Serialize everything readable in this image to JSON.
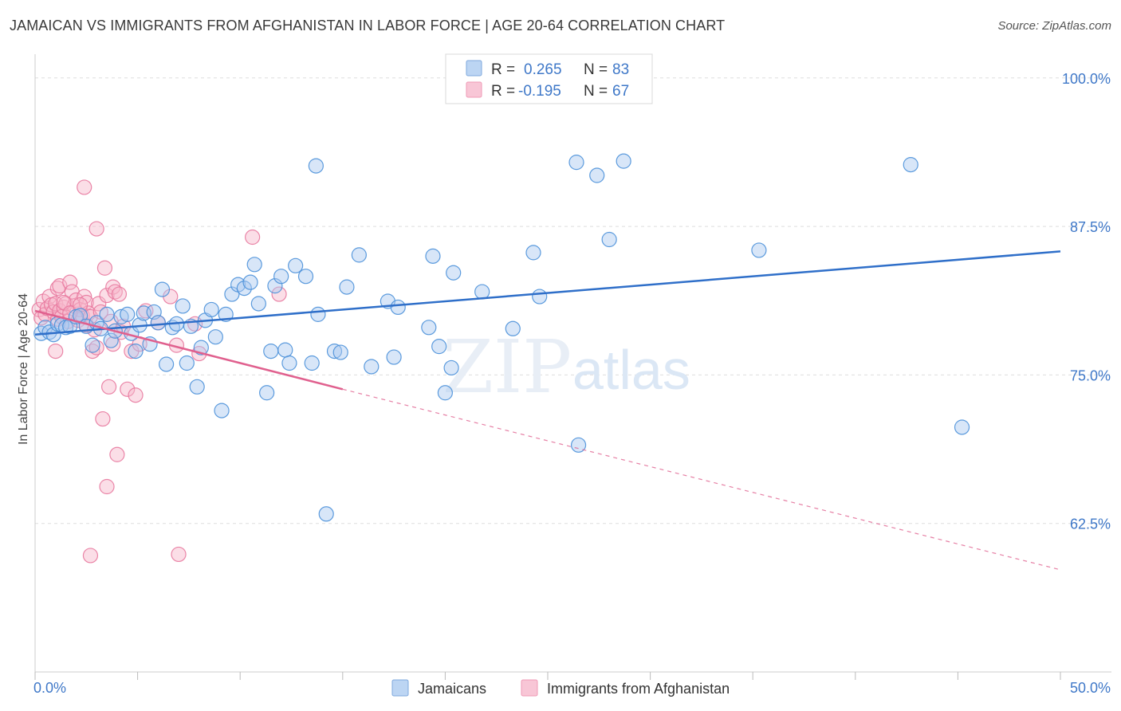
{
  "header": {
    "title": "JAMAICAN VS IMMIGRANTS FROM AFGHANISTAN IN LABOR FORCE | AGE 20-64 CORRELATION CHART",
    "source": "Source: ZipAtlas.com"
  },
  "watermark": {
    "zip": "ZIP",
    "atlas": "atlas"
  },
  "colors": {
    "blue": "#4a90d9",
    "blue_fill": "#a9c8f0",
    "blue_line": "#2f6fc9",
    "pink": "#e8799f",
    "pink_fill": "#f7b6c9",
    "pink_line": "#e0608e",
    "value_text": "#3f78c8",
    "grid": "#dddddd"
  },
  "legend_box": {
    "rows": [
      {
        "r_label": "R =",
        "r_value": "0.265",
        "n_label": "N =",
        "n_value": "83",
        "series": "blue"
      },
      {
        "r_label": "R =",
        "r_value": "-0.195",
        "n_label": "N =",
        "n_value": "67",
        "series": "pink"
      }
    ]
  },
  "chart_data": {
    "type": "scatter",
    "title": "JAMAICAN VS IMMIGRANTS FROM AFGHANISTAN IN LABOR FORCE | AGE 20-64 CORRELATION CHART",
    "xlabel": "",
    "ylabel": "In Labor Force | Age 20-64",
    "xlim": [
      0,
      50
    ],
    "ylim": [
      50,
      102
    ],
    "x_tick_labels": [
      {
        "value": 0,
        "label": "0.0%"
      },
      {
        "value": 50,
        "label": "50.0%"
      }
    ],
    "y_ticks": [
      {
        "value": 100,
        "label": "100.0%"
      },
      {
        "value": 87.5,
        "label": "87.5%"
      },
      {
        "value": 75,
        "label": "75.0%"
      },
      {
        "value": 62.5,
        "label": "62.5%"
      }
    ],
    "legend": [
      "Jamaicans",
      "Immigrants from Afghanistan"
    ],
    "series": [
      {
        "name": "Jamaicans",
        "color": "blue",
        "R": 0.265,
        "N": 83,
        "trend": {
          "x0": 0,
          "y0": 78.4,
          "x1": 50,
          "y1": 85.4
        },
        "points": [
          [
            0.3,
            78.5
          ],
          [
            0.5,
            79.0
          ],
          [
            0.7,
            78.6
          ],
          [
            0.9,
            78.4
          ],
          [
            1.1,
            79.3
          ],
          [
            1.3,
            79.2
          ],
          [
            1.5,
            79.0
          ],
          [
            1.7,
            79.1
          ],
          [
            2.0,
            79.9
          ],
          [
            2.2,
            80.0
          ],
          [
            2.5,
            79.1
          ],
          [
            2.8,
            77.5
          ],
          [
            3.0,
            79.4
          ],
          [
            3.2,
            78.9
          ],
          [
            3.5,
            80.1
          ],
          [
            3.7,
            77.9
          ],
          [
            3.9,
            78.7
          ],
          [
            4.2,
            79.9
          ],
          [
            4.5,
            80.1
          ],
          [
            4.7,
            78.5
          ],
          [
            4.9,
            77.0
          ],
          [
            5.1,
            79.2
          ],
          [
            5.3,
            80.2
          ],
          [
            5.6,
            77.6
          ],
          [
            5.8,
            80.3
          ],
          [
            6.0,
            79.4
          ],
          [
            6.2,
            82.2
          ],
          [
            6.4,
            75.9
          ],
          [
            6.7,
            79.0
          ],
          [
            6.9,
            79.3
          ],
          [
            7.2,
            80.8
          ],
          [
            7.4,
            76.0
          ],
          [
            7.6,
            79.1
          ],
          [
            7.9,
            74.0
          ],
          [
            8.1,
            77.3
          ],
          [
            8.3,
            79.6
          ],
          [
            8.6,
            80.5
          ],
          [
            8.8,
            78.2
          ],
          [
            9.1,
            72.0
          ],
          [
            9.3,
            80.1
          ],
          [
            9.6,
            81.8
          ],
          [
            9.9,
            82.6
          ],
          [
            10.2,
            82.3
          ],
          [
            10.5,
            82.8
          ],
          [
            10.7,
            84.3
          ],
          [
            10.9,
            81.0
          ],
          [
            11.3,
            73.5
          ],
          [
            11.5,
            77.0
          ],
          [
            11.7,
            82.5
          ],
          [
            12.0,
            83.3
          ],
          [
            12.2,
            77.1
          ],
          [
            12.4,
            76.0
          ],
          [
            12.7,
            84.2
          ],
          [
            13.2,
            83.3
          ],
          [
            13.5,
            76.0
          ],
          [
            13.8,
            80.1
          ],
          [
            13.7,
            92.6
          ],
          [
            14.6,
            77.0
          ],
          [
            14.9,
            76.9
          ],
          [
            15.2,
            82.4
          ],
          [
            15.8,
            85.1
          ],
          [
            16.4,
            75.7
          ],
          [
            17.2,
            81.2
          ],
          [
            17.5,
            76.5
          ],
          [
            17.7,
            80.7
          ],
          [
            19.2,
            79.0
          ],
          [
            19.4,
            85.0
          ],
          [
            19.7,
            77.4
          ],
          [
            20.0,
            73.5
          ],
          [
            20.4,
            83.6
          ],
          [
            20.3,
            75.6
          ],
          [
            21.8,
            82.0
          ],
          [
            23.3,
            78.9
          ],
          [
            24.3,
            85.3
          ],
          [
            24.6,
            81.6
          ],
          [
            26.4,
            92.9
          ],
          [
            26.5,
            69.1
          ],
          [
            27.4,
            91.8
          ],
          [
            28.0,
            86.4
          ],
          [
            28.7,
            93.0
          ],
          [
            35.3,
            85.5
          ],
          [
            42.7,
            92.7
          ],
          [
            45.2,
            70.6
          ],
          [
            14.2,
            63.3
          ]
        ]
      },
      {
        "name": "Immigrants from Afghanistan",
        "color": "pink",
        "R": -0.195,
        "N": 67,
        "trend": {
          "x0": 0,
          "y0": 80.4,
          "x1": 15.0,
          "y1": 73.8,
          "x_dash_end": 50,
          "y_dash_end": 58.6
        },
        "points": [
          [
            0.2,
            80.5
          ],
          [
            0.3,
            79.8
          ],
          [
            0.4,
            81.2
          ],
          [
            0.5,
            80.1
          ],
          [
            0.6,
            80.6
          ],
          [
            0.7,
            81.6
          ],
          [
            0.8,
            80.9
          ],
          [
            0.9,
            80.3
          ],
          [
            1.0,
            81.0
          ],
          [
            1.1,
            79.7
          ],
          [
            1.2,
            80.4
          ],
          [
            1.3,
            79.9
          ],
          [
            1.0,
            77.0
          ],
          [
            1.1,
            82.3
          ],
          [
            1.2,
            82.5
          ],
          [
            1.4,
            80.7
          ],
          [
            1.5,
            81.0
          ],
          [
            1.6,
            79.5
          ],
          [
            1.7,
            82.8
          ],
          [
            1.8,
            82.0
          ],
          [
            1.9,
            80.8
          ],
          [
            2.0,
            81.3
          ],
          [
            2.1,
            79.6
          ],
          [
            2.2,
            80.5
          ],
          [
            2.3,
            80.0
          ],
          [
            2.4,
            81.6
          ],
          [
            2.5,
            79.2
          ],
          [
            2.4,
            90.8
          ],
          [
            2.5,
            81.1
          ],
          [
            2.6,
            80.2
          ],
          [
            2.7,
            79.9
          ],
          [
            2.8,
            77.0
          ],
          [
            2.9,
            78.8
          ],
          [
            3.0,
            77.3
          ],
          [
            3.1,
            81.0
          ],
          [
            3.2,
            80.3
          ],
          [
            3.0,
            87.3
          ],
          [
            3.3,
            71.3
          ],
          [
            3.4,
            84.0
          ],
          [
            3.5,
            81.7
          ],
          [
            3.6,
            74.0
          ],
          [
            3.7,
            79.5
          ],
          [
            3.8,
            82.4
          ],
          [
            3.9,
            82.0
          ],
          [
            4.0,
            68.3
          ],
          [
            4.1,
            81.8
          ],
          [
            4.2,
            78.6
          ],
          [
            4.3,
            79.1
          ],
          [
            3.5,
            65.6
          ],
          [
            2.7,
            59.8
          ],
          [
            4.5,
            73.8
          ],
          [
            4.7,
            77.0
          ],
          [
            4.9,
            73.3
          ],
          [
            5.1,
            77.6
          ],
          [
            5.4,
            80.4
          ],
          [
            6.0,
            79.4
          ],
          [
            6.6,
            81.6
          ],
          [
            7.0,
            59.9
          ],
          [
            7.8,
            79.3
          ],
          [
            8.0,
            76.8
          ],
          [
            10.6,
            86.6
          ],
          [
            11.9,
            81.8
          ],
          [
            1.4,
            81.1
          ],
          [
            1.7,
            80.2
          ],
          [
            2.2,
            80.9
          ],
          [
            3.8,
            77.6
          ],
          [
            6.9,
            77.5
          ]
        ]
      }
    ]
  }
}
